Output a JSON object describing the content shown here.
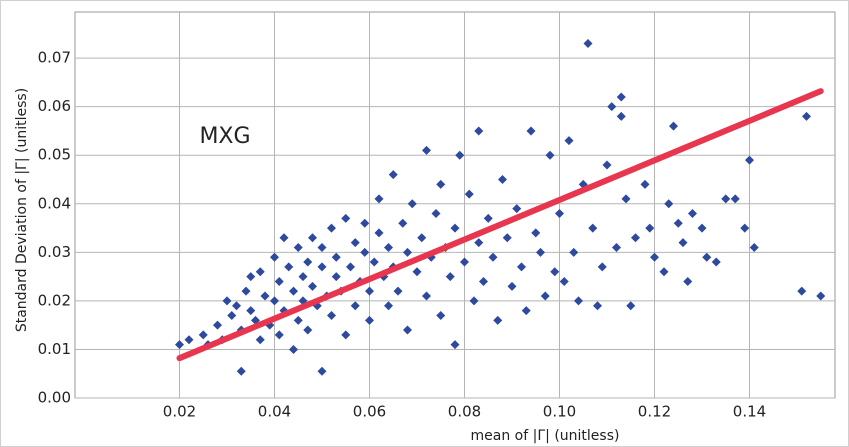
{
  "chart_data": {
    "type": "scatter",
    "annotation": "MXG",
    "x_label": "mean of |Γ|  (unitless)",
    "y_label": "Standard Deviation  of |Γ|  (unitless)",
    "xlim": [
      -0.002,
      0.158
    ],
    "ylim": [
      0,
      0.0795
    ],
    "xticks": [
      0.02,
      0.04,
      0.06,
      0.08,
      {
        "value": 0.1,
        "label": "0.10"
      },
      0.12,
      0.14
    ],
    "yticks": [
      {
        "value": 0,
        "label": "0.00"
      },
      0.01,
      0.02,
      0.03,
      0.04,
      0.05,
      0.06,
      0.07
    ],
    "grid": true,
    "series": [
      {
        "type": "scatter",
        "color": "#2e4a9e",
        "x": [
          0.02,
          0.022,
          0.025,
          0.026,
          0.028,
          0.029,
          0.03,
          0.031,
          0.032,
          0.033,
          0.033,
          0.034,
          0.035,
          0.035,
          0.036,
          0.037,
          0.037,
          0.038,
          0.039,
          0.04,
          0.04,
          0.041,
          0.041,
          0.042,
          0.042,
          0.043,
          0.044,
          0.044,
          0.045,
          0.045,
          0.046,
          0.046,
          0.047,
          0.047,
          0.048,
          0.048,
          0.049,
          0.05,
          0.05,
          0.05,
          0.051,
          0.052,
          0.052,
          0.053,
          0.053,
          0.054,
          0.055,
          0.055,
          0.056,
          0.057,
          0.057,
          0.058,
          0.059,
          0.059,
          0.06,
          0.06,
          0.061,
          0.062,
          0.062,
          0.063,
          0.064,
          0.064,
          0.065,
          0.065,
          0.066,
          0.067,
          0.068,
          0.068,
          0.069,
          0.07,
          0.071,
          0.072,
          0.072,
          0.073,
          0.074,
          0.075,
          0.075,
          0.076,
          0.077,
          0.078,
          0.078,
          0.079,
          0.08,
          0.081,
          0.082,
          0.083,
          0.083,
          0.084,
          0.085,
          0.086,
          0.087,
          0.088,
          0.089,
          0.09,
          0.091,
          0.092,
          0.093,
          0.094,
          0.095,
          0.096,
          0.097,
          0.098,
          0.099,
          0.1,
          0.101,
          0.102,
          0.103,
          0.104,
          0.105,
          0.106,
          0.107,
          0.108,
          0.109,
          0.11,
          0.111,
          0.112,
          0.113,
          0.113,
          0.114,
          0.115,
          0.116,
          0.118,
          0.119,
          0.12,
          0.122,
          0.123,
          0.124,
          0.125,
          0.126,
          0.127,
          0.128,
          0.13,
          0.131,
          0.133,
          0.135,
          0.137,
          0.139,
          0.14,
          0.141,
          0.151,
          0.152,
          0.155
        ],
        "values": [
          0.011,
          0.012,
          0.013,
          0.011,
          0.015,
          0.012,
          0.02,
          0.017,
          0.019,
          0.0055,
          0.014,
          0.022,
          0.018,
          0.025,
          0.016,
          0.026,
          0.012,
          0.021,
          0.015,
          0.029,
          0.02,
          0.024,
          0.013,
          0.033,
          0.018,
          0.027,
          0.01,
          0.022,
          0.031,
          0.016,
          0.025,
          0.02,
          0.028,
          0.014,
          0.033,
          0.023,
          0.019,
          0.0055,
          0.027,
          0.031,
          0.021,
          0.035,
          0.017,
          0.025,
          0.029,
          0.022,
          0.037,
          0.013,
          0.027,
          0.032,
          0.019,
          0.024,
          0.03,
          0.036,
          0.022,
          0.016,
          0.028,
          0.034,
          0.041,
          0.025,
          0.019,
          0.031,
          0.046,
          0.027,
          0.022,
          0.036,
          0.03,
          0.014,
          0.04,
          0.026,
          0.033,
          0.051,
          0.021,
          0.029,
          0.038,
          0.044,
          0.017,
          0.031,
          0.025,
          0.035,
          0.011,
          0.05,
          0.028,
          0.042,
          0.02,
          0.055,
          0.032,
          0.024,
          0.037,
          0.029,
          0.016,
          0.045,
          0.033,
          0.023,
          0.039,
          0.027,
          0.018,
          0.055,
          0.034,
          0.03,
          0.021,
          0.05,
          0.026,
          0.038,
          0.024,
          0.053,
          0.03,
          0.02,
          0.044,
          0.073,
          0.035,
          0.019,
          0.027,
          0.048,
          0.06,
          0.031,
          0.062,
          0.058,
          0.041,
          0.019,
          0.033,
          0.044,
          0.035,
          0.029,
          0.026,
          0.04,
          0.056,
          0.036,
          0.032,
          0.024,
          0.038,
          0.035,
          0.029,
          0.028,
          0.041,
          0.041,
          0.035,
          0.049,
          0.031,
          0.022,
          0.058,
          0.021
        ]
      },
      {
        "type": "line",
        "color": "#e8364f",
        "x": [
          0.02,
          0.155
        ],
        "values": [
          0.0082,
          0.0632
        ]
      }
    ]
  }
}
